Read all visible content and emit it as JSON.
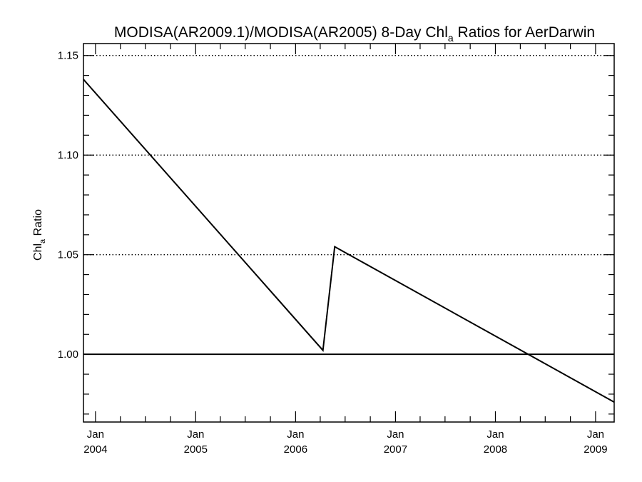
{
  "chart_data": {
    "type": "line",
    "title": {
      "prefix": "MODISA(AR2009.1)/MODISA(AR2005) 8-Day Chl",
      "subscript": "a",
      "suffix": " Ratios for AerDarwin"
    },
    "ylabel": {
      "prefix": "Chl",
      "subscript": "a",
      "suffix": " Ratio"
    },
    "xlabel": "",
    "xlim": [
      "2003-11-18",
      "2009-03-10"
    ],
    "ylim": [
      0.966,
      1.156
    ],
    "y_ticks": [
      {
        "value": 1.0,
        "label": "1.00"
      },
      {
        "value": 1.05,
        "label": "1.05"
      },
      {
        "value": 1.1,
        "label": "1.10"
      },
      {
        "value": 1.15,
        "label": "1.15"
      }
    ],
    "x_ticks": [
      {
        "date": "2004-01-01",
        "month": "Jan",
        "year": "2004"
      },
      {
        "date": "2005-01-01",
        "month": "Jan",
        "year": "2005"
      },
      {
        "date": "2006-01-01",
        "month": "Jan",
        "year": "2006"
      },
      {
        "date": "2007-01-01",
        "month": "Jan",
        "year": "2007"
      },
      {
        "date": "2008-01-01",
        "month": "Jan",
        "year": "2008"
      },
      {
        "date": "2009-01-01",
        "month": "Jan",
        "year": "2009"
      }
    ],
    "grid": "dotted horizontal lines at labeled y ticks",
    "reference_line": 1.0,
    "series": [
      {
        "x": [
          "2003-11-18",
          "2006-04-11",
          "2006-05-24",
          "2009-03-10"
        ],
        "y": [
          1.138,
          1.002,
          1.054,
          0.976
        ]
      }
    ]
  }
}
